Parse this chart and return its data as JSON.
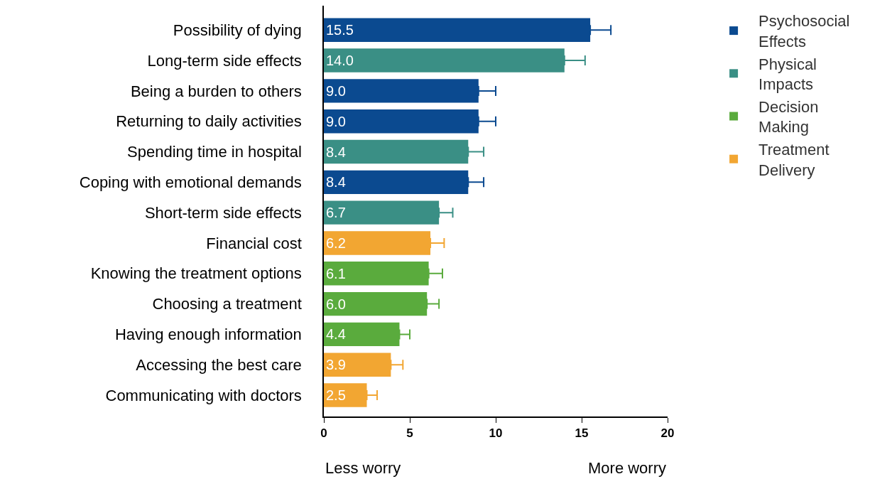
{
  "chart_data": {
    "type": "bar",
    "orientation": "horizontal",
    "categories": [
      "Possibility of dying",
      "Long-term side effects",
      "Being a burden to others",
      "Returning to daily activities",
      "Spending time in hospital",
      "Coping with emotional demands",
      "Short-term side effects",
      "Financial cost",
      "Knowing the treatment options",
      "Choosing a treatment",
      "Having enough information",
      "Accessing the best care",
      "Communicating with doctors"
    ],
    "series": [
      {
        "name": "Psychosocial Effects",
        "color": "#0b4a90",
        "values": [
          15.5,
          null,
          9.0,
          9.0,
          null,
          8.4,
          null,
          null,
          null,
          null,
          null,
          null,
          null
        ],
        "value_labels": [
          "15.5",
          null,
          "9.0",
          "9.0",
          null,
          "8.4",
          null,
          null,
          null,
          null,
          null,
          null,
          null
        ],
        "errors": [
          [
            15.5,
            16.7
          ],
          null,
          [
            9.0,
            10.0
          ],
          [
            9.0,
            10.0
          ],
          null,
          [
            8.4,
            9.3
          ],
          null,
          null,
          null,
          null,
          null,
          null,
          null
        ]
      },
      {
        "name": "Physical Impacts",
        "color": "#3a8f85",
        "values": [
          null,
          14.0,
          null,
          null,
          8.4,
          null,
          6.7,
          null,
          null,
          null,
          null,
          null,
          null
        ],
        "value_labels": [
          null,
          "14.0",
          null,
          null,
          "8.4",
          null,
          "6.7",
          null,
          null,
          null,
          null,
          null,
          null
        ],
        "errors": [
          null,
          [
            14.0,
            15.2
          ],
          null,
          null,
          [
            8.4,
            9.3
          ],
          null,
          [
            6.7,
            7.5
          ],
          null,
          null,
          null,
          null,
          null,
          null
        ]
      },
      {
        "name": "Decision Making",
        "color": "#5aab3d",
        "values": [
          null,
          null,
          null,
          null,
          null,
          null,
          null,
          null,
          6.1,
          6.0,
          4.4,
          null,
          null
        ],
        "value_labels": [
          null,
          null,
          null,
          null,
          null,
          null,
          null,
          null,
          "6.1",
          "6.0",
          "4.4",
          null,
          null
        ],
        "errors": [
          null,
          null,
          null,
          null,
          null,
          null,
          null,
          null,
          [
            6.1,
            6.9
          ],
          [
            6.0,
            6.7
          ],
          [
            4.4,
            5.0
          ],
          null,
          null
        ]
      },
      {
        "name": "Treatment Delivery",
        "color": "#f2a632",
        "values": [
          null,
          null,
          null,
          null,
          null,
          null,
          null,
          6.2,
          null,
          null,
          null,
          3.9,
          2.5
        ],
        "value_labels": [
          null,
          null,
          null,
          null,
          null,
          null,
          null,
          "6.2",
          null,
          null,
          null,
          "3.9",
          "2.5"
        ],
        "errors": [
          null,
          null,
          null,
          null,
          null,
          null,
          null,
          [
            6.2,
            7.0
          ],
          null,
          null,
          null,
          [
            3.9,
            4.6
          ],
          [
            2.5,
            3.1
          ]
        ]
      }
    ],
    "xlim": [
      0,
      20
    ],
    "xticks": [
      0,
      5,
      10,
      15,
      20
    ],
    "grid": false,
    "legend": "top right",
    "annotations": [
      "Less worry",
      "More worry"
    ]
  }
}
